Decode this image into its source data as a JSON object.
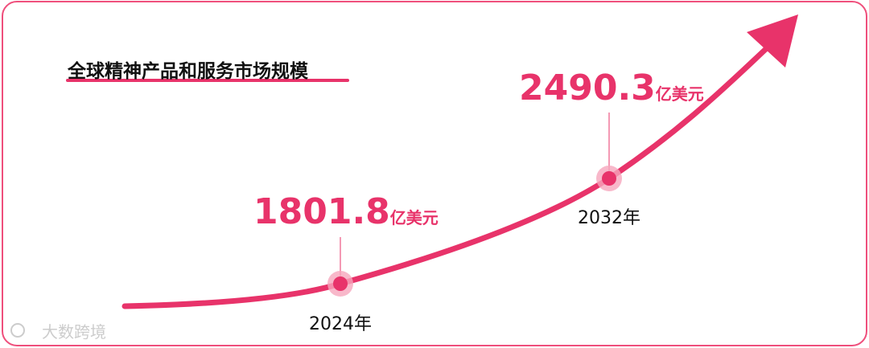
{
  "title": "全球精神产品和服务市场规模",
  "points": [
    {
      "value": 1801.8,
      "unit": "亿美元",
      "year": "2024年"
    },
    {
      "value": 2490.3,
      "unit": "亿美元",
      "year": "2032年"
    }
  ],
  "watermark": "大数跨境"
}
